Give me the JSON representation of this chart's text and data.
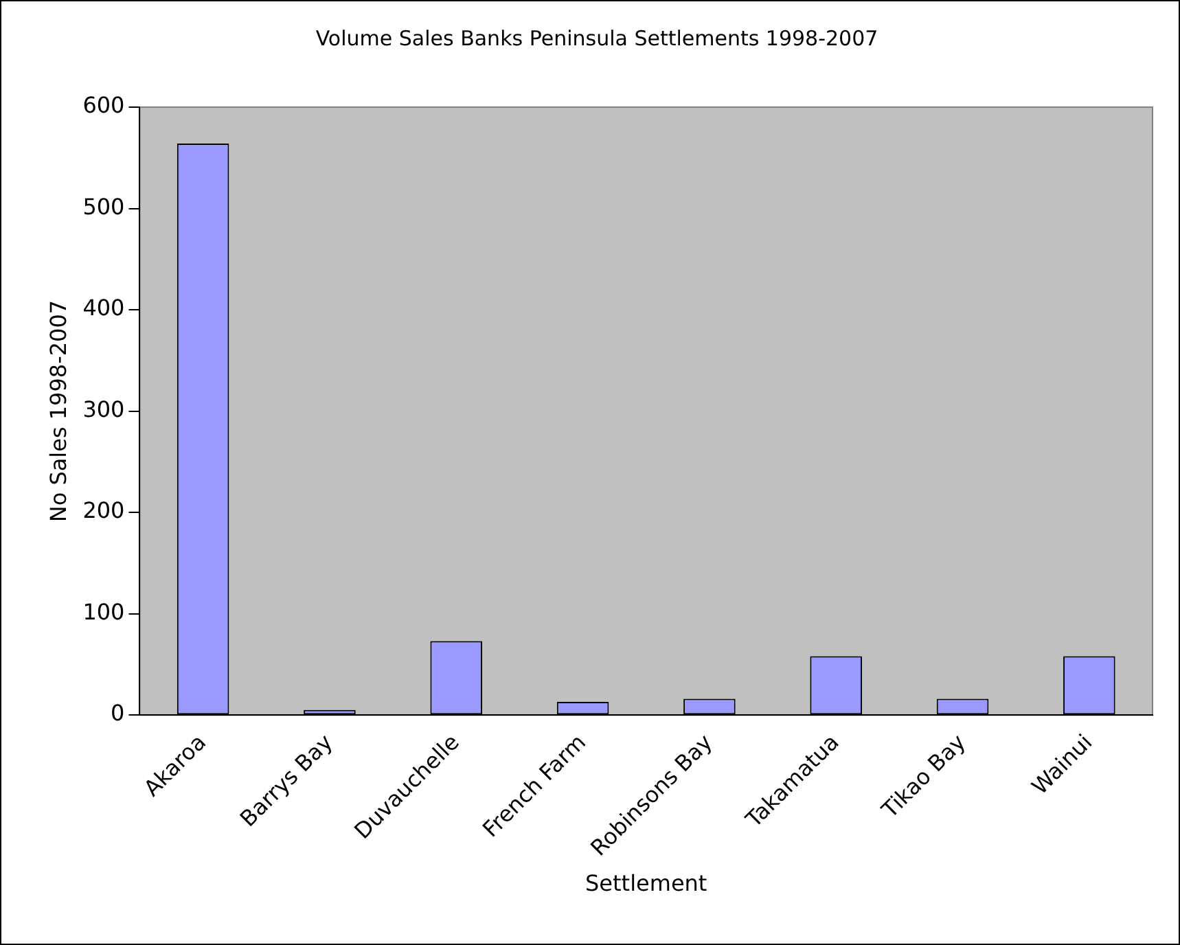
{
  "chart_data": {
    "type": "bar",
    "title": "Volume Sales Banks Peninsula Settlements 1998-2007",
    "xlabel": "Settlement",
    "ylabel": "No Sales 1998-2007",
    "categories": [
      "Akaroa",
      "Barrys Bay",
      "Duvauchelle",
      "French Farm",
      "Robinsons Bay",
      "Takamatua",
      "Tikao Bay",
      "Wainui"
    ],
    "values": [
      564,
      5,
      73,
      13,
      16,
      58,
      16,
      58
    ],
    "color": "#9999ff",
    "ylim": [
      0,
      600
    ],
    "yticks": [
      0,
      100,
      200,
      300,
      400,
      500,
      600
    ],
    "grid": false,
    "legend": false
  }
}
